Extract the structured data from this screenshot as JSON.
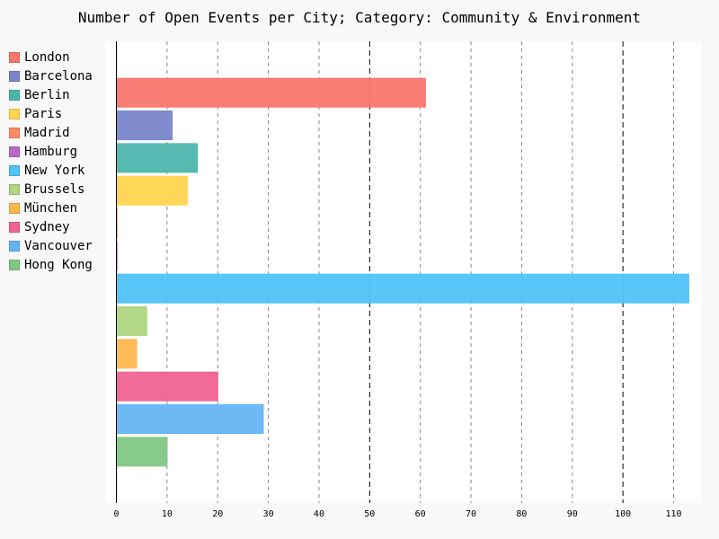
{
  "chart_data": {
    "type": "bar",
    "orientation": "horizontal",
    "title": "Number of Open Events per City; Category: Community & Environment",
    "xlabel": "",
    "ylabel": "",
    "xlim": [
      0,
      113
    ],
    "x_ticks": [
      "0",
      "10",
      "20",
      "30",
      "40",
      "50",
      "60",
      "70",
      "80",
      "90",
      "100",
      "110"
    ],
    "grid": "vertical dashed",
    "legend_position": "left",
    "categories": [
      "London",
      "Barcelona",
      "Berlin",
      "Paris",
      "Madrid",
      "Hamburg",
      "New York",
      "Brussels",
      "München",
      "Sydney",
      "Vancouver",
      "Hong Kong"
    ],
    "values": [
      61,
      11,
      16,
      14,
      0,
      0,
      113,
      6,
      4,
      20,
      29,
      10
    ],
    "colors": [
      "#f8766d",
      "#7986cb",
      "#4db6ac",
      "#ffd54f",
      "#ff8a65",
      "#ba68c8",
      "#4fc3f7",
      "#aed581",
      "#ffb74d",
      "#f06292",
      "#64b5f6",
      "#81c784"
    ]
  }
}
